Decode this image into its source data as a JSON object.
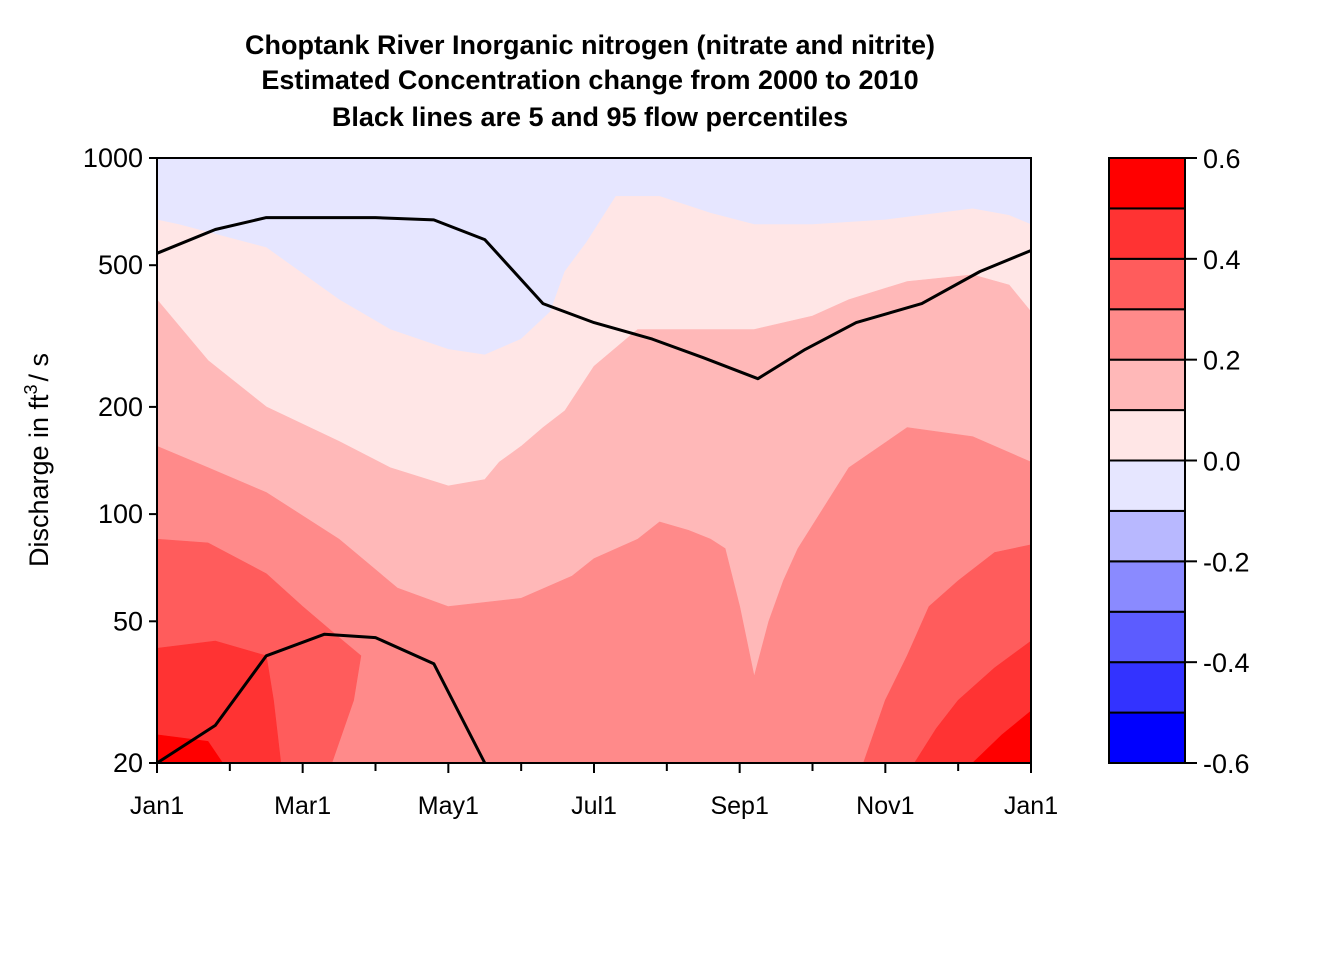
{
  "chart_data": {
    "type": "filled-contour",
    "title_lines": [
      "Choptank River  Inorganic nitrogen (nitrate and nitrite)",
      "Estimated Concentration change from 2000 to 2010",
      "Black lines are 5 and 95 flow percentiles"
    ],
    "ylabel": {
      "prefix": "Discharge in ft",
      "sup": "3",
      "suffix": "/ s"
    },
    "yscale": "log",
    "ylim": [
      20,
      1000
    ],
    "y_ticks": [
      {
        "value": 20,
        "label": "20"
      },
      {
        "value": 50,
        "label": "50"
      },
      {
        "value": 100,
        "label": "100"
      },
      {
        "value": 200,
        "label": "200"
      },
      {
        "value": 500,
        "label": "500"
      },
      {
        "value": 1000,
        "label": "1000"
      }
    ],
    "x_unit": "month of year (Jan1 = 0, next Jan1 = 12)",
    "xlim": [
      0,
      12
    ],
    "x_ticks": [
      {
        "value": 0,
        "label": "Jan1"
      },
      {
        "value": 2,
        "label": "Mar1"
      },
      {
        "value": 4,
        "label": "May1"
      },
      {
        "value": 6,
        "label": "Jul1"
      },
      {
        "value": 8,
        "label": "Sep1"
      },
      {
        "value": 10,
        "label": "Nov1"
      },
      {
        "value": 12,
        "label": "Jan1"
      }
    ],
    "x_minor_ticks": [
      1,
      3,
      5,
      7,
      9,
      11
    ],
    "colorbar": {
      "levels": [
        -0.6,
        -0.5,
        -0.4,
        -0.3,
        -0.2,
        -0.1,
        0.0,
        0.1,
        0.2,
        0.3,
        0.4,
        0.5,
        0.6
      ],
      "colors": [
        "#0000ff",
        "#3333ff",
        "#5c5cff",
        "#8a8aff",
        "#b8b8ff",
        "#e6e6ff",
        "#ffe6e6",
        "#ffb8b8",
        "#ff8a8a",
        "#ff5c5c",
        "#ff3333",
        "#ff0000"
      ],
      "tick_labels": [
        {
          "value": -0.6,
          "label": "-0.6"
        },
        {
          "value": -0.4,
          "label": "-0.4"
        },
        {
          "value": -0.2,
          "label": "-0.2"
        },
        {
          "value": 0.0,
          "label": "0.0"
        },
        {
          "value": 0.2,
          "label": "0.2"
        },
        {
          "value": 0.4,
          "label": "0.4"
        },
        {
          "value": 0.6,
          "label": "0.6"
        }
      ]
    },
    "contour_regions": [
      {
        "band": 5,
        "polygon": [
          [
            0,
            1000
          ],
          [
            12,
            1000
          ],
          [
            12,
            20
          ],
          [
            0,
            20
          ]
        ]
      },
      {
        "band": 6,
        "polygon": [
          [
            0,
            670
          ],
          [
            0.3,
            650
          ],
          [
            1.5,
            560
          ],
          [
            2.5,
            400
          ],
          [
            3.2,
            330
          ],
          [
            4,
            290
          ],
          [
            4.5,
            280
          ],
          [
            5,
            310
          ],
          [
            5.4,
            370
          ],
          [
            5.6,
            480
          ],
          [
            5.9,
            580
          ],
          [
            6.3,
            780
          ],
          [
            6.9,
            780
          ],
          [
            7.6,
            700
          ],
          [
            8.2,
            650
          ],
          [
            9,
            650
          ],
          [
            10,
            670
          ],
          [
            11.2,
            720
          ],
          [
            11.7,
            690
          ],
          [
            12,
            650
          ],
          [
            12,
            20
          ],
          [
            0,
            20
          ]
        ]
      },
      {
        "band": 7,
        "polygon": [
          [
            0,
            400
          ],
          [
            0.7,
            270
          ],
          [
            1.5,
            200
          ],
          [
            2.5,
            160
          ],
          [
            3.2,
            135
          ],
          [
            4,
            120
          ],
          [
            4.5,
            125
          ],
          [
            4.7,
            140
          ],
          [
            5,
            155
          ],
          [
            5.3,
            175
          ],
          [
            5.6,
            195
          ],
          [
            6,
            260
          ],
          [
            6.6,
            330
          ],
          [
            7.5,
            330
          ],
          [
            8.2,
            330
          ],
          [
            9,
            360
          ],
          [
            9.5,
            400
          ],
          [
            10.3,
            450
          ],
          [
            11.2,
            470
          ],
          [
            11.7,
            440
          ],
          [
            12,
            370
          ],
          [
            12,
            20
          ],
          [
            0,
            20
          ]
        ]
      },
      {
        "band": 8,
        "polygon": [
          [
            0,
            155
          ],
          [
            0.7,
            135
          ],
          [
            1.5,
            115
          ],
          [
            2.5,
            85
          ],
          [
            3.3,
            62
          ],
          [
            4,
            55
          ],
          [
            5,
            58
          ],
          [
            5.7,
            67
          ],
          [
            6,
            75
          ],
          [
            6.6,
            85
          ],
          [
            6.9,
            95
          ],
          [
            7.3,
            90
          ],
          [
            7.6,
            85
          ],
          [
            7.8,
            80
          ],
          [
            8,
            55
          ],
          [
            8.2,
            35
          ],
          [
            8.4,
            50
          ],
          [
            8.6,
            65
          ],
          [
            8.8,
            80
          ],
          [
            9.5,
            135
          ],
          [
            10.3,
            175
          ],
          [
            11.2,
            165
          ],
          [
            12,
            140
          ],
          [
            12,
            20
          ],
          [
            0,
            20
          ]
        ]
      },
      {
        "band": 9,
        "polygon": [
          [
            0,
            85
          ],
          [
            0.7,
            83
          ],
          [
            1.5,
            68
          ],
          [
            2,
            55
          ],
          [
            2.5,
            45
          ],
          [
            2.8,
            40
          ],
          [
            2.7,
            30
          ],
          [
            2.4,
            20
          ],
          [
            0,
            20
          ]
        ]
      },
      {
        "band": 9,
        "polygon": [
          [
            9.7,
            20
          ],
          [
            10,
            30
          ],
          [
            10.3,
            40
          ],
          [
            10.6,
            55
          ],
          [
            11,
            65
          ],
          [
            11.5,
            78
          ],
          [
            12,
            82
          ],
          [
            12,
            20
          ]
        ]
      },
      {
        "band": 10,
        "polygon": [
          [
            0,
            42
          ],
          [
            0.8,
            44
          ],
          [
            1.5,
            40
          ],
          [
            1.6,
            30
          ],
          [
            1.7,
            20
          ],
          [
            0,
            20
          ]
        ]
      },
      {
        "band": 10,
        "polygon": [
          [
            10.4,
            20
          ],
          [
            10.7,
            25
          ],
          [
            11,
            30
          ],
          [
            11.5,
            37
          ],
          [
            12,
            44
          ],
          [
            12,
            20
          ]
        ]
      },
      {
        "band": 11,
        "polygon": [
          [
            0,
            24
          ],
          [
            0.7,
            23
          ],
          [
            0.9,
            20
          ],
          [
            0,
            20
          ]
        ]
      },
      {
        "band": 11,
        "polygon": [
          [
            11.2,
            20
          ],
          [
            11.6,
            24
          ],
          [
            12,
            28
          ],
          [
            12,
            20
          ]
        ]
      }
    ],
    "percentile_lines": [
      {
        "name": "95",
        "points": [
          [
            0,
            540
          ],
          [
            0.8,
            630
          ],
          [
            1.5,
            680
          ],
          [
            3,
            680
          ],
          [
            3.8,
            670
          ],
          [
            4.5,
            590
          ],
          [
            5.3,
            390
          ],
          [
            6,
            345
          ],
          [
            6.8,
            310
          ],
          [
            7.5,
            275
          ],
          [
            8.25,
            240
          ],
          [
            8.9,
            290
          ],
          [
            9.6,
            345
          ],
          [
            10.5,
            390
          ],
          [
            11.3,
            480
          ],
          [
            12,
            550
          ]
        ]
      },
      {
        "name": "5",
        "points": [
          [
            0,
            20
          ],
          [
            0.8,
            25.5
          ],
          [
            1.5,
            40
          ],
          [
            2.3,
            46
          ],
          [
            3,
            45
          ],
          [
            3.8,
            38
          ],
          [
            4.5,
            20
          ]
        ]
      }
    ]
  }
}
